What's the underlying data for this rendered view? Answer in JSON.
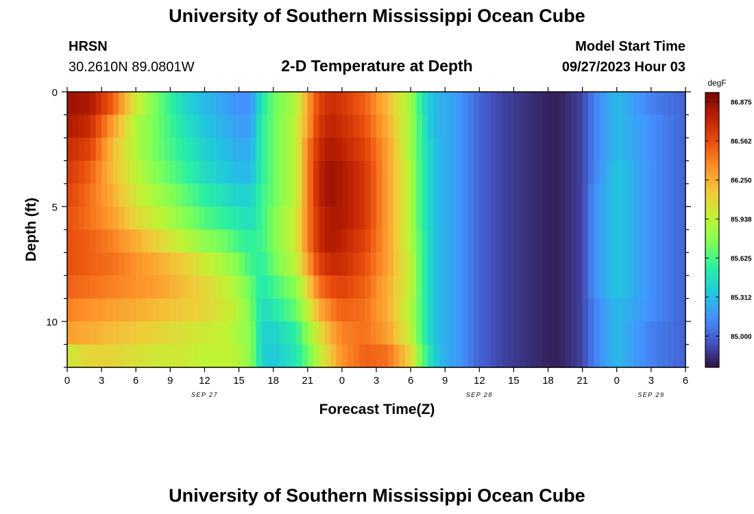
{
  "page": {
    "title": "University of Southern Mississippi Ocean Cube",
    "footer_title": "University of Southern Mississippi Ocean Cube"
  },
  "station": {
    "id": "HRSN",
    "coords": "30.2610N  89.0801W"
  },
  "model": {
    "label": "Model Start Time",
    "start": "09/27/2023 Hour 03"
  },
  "chart_data": {
    "type": "heatmap",
    "title": "2-D Temperature at Depth",
    "xlabel": "Forecast Time(Z)",
    "ylabel": "Depth (ft)",
    "x_range_hours": [
      0,
      54
    ],
    "y_range_ft": [
      0,
      12
    ],
    "x_tick_labels": [
      "0",
      "3",
      "6",
      "9",
      "12",
      "15",
      "18",
      "21",
      "0",
      "3",
      "6",
      "9",
      "12",
      "15",
      "18",
      "21",
      "0",
      "3",
      "6"
    ],
    "y_tick_labels": [
      "0",
      "5",
      "10"
    ],
    "y_tick_values": [
      0,
      5,
      10
    ],
    "date_labels": [
      {
        "text": "SEP 27",
        "hour": 12
      },
      {
        "text": "SEP 28",
        "hour": 36
      },
      {
        "text": "SEP 29",
        "hour": 51
      }
    ],
    "colorbar": {
      "unit": "degF",
      "min": 84.75,
      "max": 86.95,
      "tick_labels": [
        "86.875",
        "86.562",
        "86.250",
        "85.938",
        "85.625",
        "85.312",
        "85.000"
      ],
      "tick_values": [
        86.875,
        86.5625,
        86.25,
        85.9375,
        85.625,
        85.3125,
        85.0
      ],
      "colormap": [
        "#30123b",
        "#4454c4",
        "#4490fe",
        "#1fc8de",
        "#29efa2",
        "#7dff56",
        "#c1f334",
        "#f1ca3a",
        "#fe922a",
        "#ea4f0d",
        "#be2102",
        "#7a0403"
      ]
    },
    "depth_rows_ft": [
      0.5,
      1.5,
      2.5,
      3.5,
      4.5,
      5.5,
      6.5,
      7.5,
      8.5,
      9.5,
      10.5,
      11.5
    ],
    "time_keys_hours": [
      0,
      2,
      4,
      6,
      8,
      10,
      12,
      14,
      15,
      16,
      17,
      18,
      20,
      21,
      22,
      23,
      24,
      26,
      28,
      30,
      31,
      32,
      33,
      34,
      36,
      38,
      40,
      42,
      43,
      45,
      46,
      48,
      51,
      54
    ],
    "temperature_degF": [
      [
        86.85,
        86.8,
        86.5,
        86.0,
        85.7,
        85.45,
        85.3,
        85.2,
        85.15,
        85.15,
        85.5,
        85.7,
        85.9,
        86.3,
        86.6,
        86.7,
        86.65,
        86.5,
        86.2,
        85.85,
        85.5,
        85.3,
        85.25,
        85.2,
        85.0,
        84.9,
        84.85,
        84.8,
        84.8,
        84.9,
        85.1,
        85.3,
        85.1,
        85.0
      ],
      [
        86.8,
        86.7,
        86.3,
        85.9,
        85.7,
        85.5,
        85.35,
        85.25,
        85.2,
        85.2,
        85.55,
        85.7,
        85.95,
        86.3,
        86.65,
        86.75,
        86.7,
        86.55,
        86.25,
        85.85,
        85.55,
        85.3,
        85.25,
        85.2,
        85.0,
        84.9,
        84.85,
        84.8,
        84.8,
        84.9,
        85.1,
        85.3,
        85.15,
        85.0
      ],
      [
        86.7,
        86.6,
        86.2,
        85.9,
        85.7,
        85.55,
        85.4,
        85.3,
        85.25,
        85.25,
        85.55,
        85.7,
        85.95,
        86.4,
        86.7,
        86.8,
        86.75,
        86.6,
        86.3,
        85.85,
        85.55,
        85.35,
        85.25,
        85.2,
        85.0,
        84.9,
        84.85,
        84.8,
        84.8,
        84.9,
        85.1,
        85.3,
        85.15,
        85.0
      ],
      [
        86.65,
        86.5,
        86.2,
        85.95,
        85.75,
        85.6,
        85.45,
        85.35,
        85.3,
        85.3,
        85.55,
        85.7,
        85.95,
        86.4,
        86.75,
        86.85,
        86.8,
        86.65,
        86.3,
        85.9,
        85.55,
        85.35,
        85.25,
        85.2,
        85.0,
        84.9,
        84.85,
        84.8,
        84.8,
        84.9,
        85.1,
        85.35,
        85.15,
        85.0
      ],
      [
        86.6,
        86.45,
        86.25,
        86.0,
        85.85,
        85.7,
        85.55,
        85.45,
        85.4,
        85.4,
        85.6,
        85.7,
        85.95,
        86.4,
        86.75,
        86.85,
        86.8,
        86.65,
        86.3,
        85.9,
        85.55,
        85.35,
        85.25,
        85.2,
        85.0,
        84.9,
        84.85,
        84.8,
        84.8,
        84.9,
        85.15,
        85.35,
        85.15,
        85.0
      ],
      [
        86.55,
        86.45,
        86.3,
        86.1,
        85.95,
        85.8,
        85.65,
        85.55,
        85.5,
        85.45,
        85.6,
        85.75,
        86.0,
        86.4,
        86.7,
        86.8,
        86.8,
        86.65,
        86.3,
        85.9,
        85.55,
        85.35,
        85.25,
        85.2,
        85.0,
        84.9,
        84.85,
        84.8,
        84.8,
        84.9,
        85.15,
        85.35,
        85.15,
        85.0
      ],
      [
        86.55,
        86.5,
        86.4,
        86.25,
        86.1,
        85.95,
        85.8,
        85.7,
        85.6,
        85.55,
        85.6,
        85.75,
        86.0,
        86.4,
        86.7,
        86.8,
        86.75,
        86.6,
        86.3,
        85.9,
        85.6,
        85.35,
        85.25,
        85.2,
        85.0,
        84.9,
        84.85,
        84.8,
        84.8,
        84.9,
        85.15,
        85.35,
        85.15,
        85.0
      ],
      [
        86.55,
        86.5,
        86.45,
        86.35,
        86.25,
        86.15,
        86.0,
        85.85,
        85.75,
        85.6,
        85.55,
        85.7,
        85.95,
        86.3,
        86.6,
        86.7,
        86.7,
        86.55,
        86.3,
        85.95,
        85.6,
        85.35,
        85.25,
        85.2,
        85.0,
        84.9,
        84.85,
        84.8,
        84.8,
        84.9,
        85.15,
        85.35,
        85.15,
        85.0
      ],
      [
        86.5,
        86.45,
        86.4,
        86.35,
        86.3,
        86.2,
        86.1,
        85.95,
        85.85,
        85.7,
        85.5,
        85.6,
        85.8,
        86.1,
        86.45,
        86.55,
        86.6,
        86.5,
        86.25,
        85.95,
        85.6,
        85.35,
        85.25,
        85.2,
        85.0,
        84.9,
        84.85,
        84.8,
        84.8,
        84.9,
        85.15,
        85.35,
        85.15,
        85.0
      ],
      [
        86.4,
        86.35,
        86.3,
        86.25,
        86.2,
        86.15,
        86.1,
        86.0,
        85.9,
        85.75,
        85.45,
        85.5,
        85.7,
        85.95,
        86.25,
        86.4,
        86.5,
        86.45,
        86.25,
        85.9,
        85.6,
        85.35,
        85.25,
        85.2,
        85.0,
        84.9,
        84.85,
        84.8,
        84.8,
        84.9,
        85.1,
        85.3,
        85.15,
        85.0
      ],
      [
        86.3,
        86.25,
        86.2,
        86.15,
        86.1,
        86.05,
        86.0,
        85.95,
        85.85,
        85.8,
        85.4,
        85.4,
        85.55,
        85.8,
        86.05,
        86.25,
        86.4,
        86.45,
        86.3,
        85.95,
        85.6,
        85.35,
        85.25,
        85.2,
        85.0,
        84.9,
        84.85,
        84.8,
        84.8,
        84.9,
        85.1,
        85.3,
        85.1,
        85.0
      ],
      [
        86.0,
        86.1,
        86.1,
        86.05,
        86.0,
        86.0,
        85.95,
        85.95,
        85.9,
        85.8,
        85.4,
        85.35,
        85.5,
        85.7,
        85.95,
        86.15,
        86.35,
        86.5,
        86.45,
        86.1,
        85.7,
        85.4,
        85.25,
        85.2,
        85.0,
        84.9,
        84.85,
        84.8,
        84.8,
        84.9,
        85.1,
        85.3,
        85.1,
        85.0
      ]
    ]
  }
}
